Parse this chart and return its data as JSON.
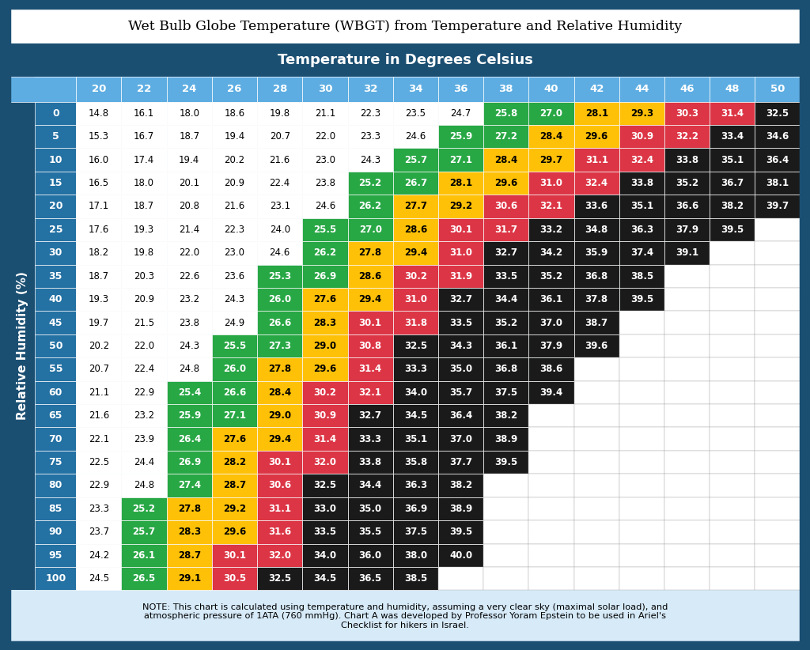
{
  "title": "Wet Bulb Globe Temperature (WBGT) from Temperature and Relative Humidity",
  "subtitle": "Temperature in Degrees Celsius",
  "ylabel": "Relative Humidity (%)",
  "temp_cols": [
    20,
    22,
    24,
    26,
    28,
    30,
    32,
    34,
    36,
    38,
    40,
    42,
    44,
    46,
    48,
    50
  ],
  "humidity_rows": [
    0,
    5,
    10,
    15,
    20,
    25,
    30,
    35,
    40,
    45,
    50,
    55,
    60,
    65,
    70,
    75,
    80,
    85,
    90,
    95,
    100
  ],
  "data": [
    [
      14.8,
      16.1,
      18.0,
      18.6,
      19.8,
      21.1,
      22.3,
      23.5,
      24.7,
      25.8,
      27.0,
      28.1,
      29.3,
      30.3,
      31.4,
      32.5
    ],
    [
      15.3,
      16.7,
      18.7,
      19.4,
      20.7,
      22.0,
      23.3,
      24.6,
      25.9,
      27.2,
      28.4,
      29.6,
      30.9,
      32.2,
      33.4,
      34.6
    ],
    [
      16.0,
      17.4,
      19.4,
      20.2,
      21.6,
      23.0,
      24.3,
      25.7,
      27.1,
      28.4,
      29.7,
      31.1,
      32.4,
      33.8,
      35.1,
      36.4
    ],
    [
      16.5,
      18.0,
      20.1,
      20.9,
      22.4,
      23.8,
      25.2,
      26.7,
      28.1,
      29.6,
      31.0,
      32.4,
      33.8,
      35.2,
      36.7,
      38.1
    ],
    [
      17.1,
      18.7,
      20.8,
      21.6,
      23.1,
      24.6,
      26.2,
      27.7,
      29.2,
      30.6,
      32.1,
      33.6,
      35.1,
      36.6,
      38.2,
      39.7
    ],
    [
      17.6,
      19.3,
      21.4,
      22.3,
      24.0,
      25.5,
      27.0,
      28.6,
      30.1,
      31.7,
      33.2,
      34.8,
      36.3,
      37.9,
      39.5,
      null
    ],
    [
      18.2,
      19.8,
      22.0,
      23.0,
      24.6,
      26.2,
      27.8,
      29.4,
      31.0,
      32.7,
      34.2,
      35.9,
      37.4,
      39.1,
      null,
      null
    ],
    [
      18.7,
      20.3,
      22.6,
      23.6,
      25.3,
      26.9,
      28.6,
      30.2,
      31.9,
      33.5,
      35.2,
      36.8,
      38.5,
      null,
      null,
      null
    ],
    [
      19.3,
      20.9,
      23.2,
      24.3,
      26.0,
      27.6,
      29.4,
      31.0,
      32.7,
      34.4,
      36.1,
      37.8,
      39.5,
      null,
      null,
      null
    ],
    [
      19.7,
      21.5,
      23.8,
      24.9,
      26.6,
      28.3,
      30.1,
      31.8,
      33.5,
      35.2,
      37.0,
      38.7,
      null,
      null,
      null,
      null
    ],
    [
      20.2,
      22.0,
      24.3,
      25.5,
      27.3,
      29.0,
      30.8,
      32.5,
      34.3,
      36.1,
      37.9,
      39.6,
      null,
      null,
      null,
      null
    ],
    [
      20.7,
      22.4,
      24.8,
      26.0,
      27.8,
      29.6,
      31.4,
      33.3,
      35.0,
      36.8,
      38.6,
      null,
      null,
      null,
      null,
      null
    ],
    [
      21.1,
      22.9,
      25.4,
      26.6,
      28.4,
      30.2,
      32.1,
      34.0,
      35.7,
      37.5,
      39.4,
      null,
      null,
      null,
      null,
      null
    ],
    [
      21.6,
      23.2,
      25.9,
      27.1,
      29.0,
      30.9,
      32.7,
      34.5,
      36.4,
      38.2,
      null,
      null,
      null,
      null,
      null,
      null
    ],
    [
      22.1,
      23.9,
      26.4,
      27.6,
      29.4,
      31.4,
      33.3,
      35.1,
      37.0,
      38.9,
      null,
      null,
      null,
      null,
      null,
      null
    ],
    [
      22.5,
      24.4,
      26.9,
      28.2,
      30.1,
      32.0,
      33.8,
      35.8,
      37.7,
      39.5,
      null,
      null,
      null,
      null,
      null,
      null
    ],
    [
      22.9,
      24.8,
      27.4,
      28.7,
      30.6,
      32.5,
      34.4,
      36.3,
      38.2,
      null,
      null,
      null,
      null,
      null,
      null,
      null
    ],
    [
      23.3,
      25.2,
      27.8,
      29.2,
      31.1,
      33.0,
      35.0,
      36.9,
      38.9,
      null,
      null,
      null,
      null,
      null,
      null,
      null
    ],
    [
      23.7,
      25.7,
      28.3,
      29.6,
      31.6,
      33.5,
      35.5,
      37.5,
      39.5,
      null,
      null,
      null,
      null,
      null,
      null,
      null
    ],
    [
      24.2,
      26.1,
      28.7,
      30.1,
      32.0,
      34.0,
      36.0,
      38.0,
      40.0,
      null,
      null,
      null,
      null,
      null,
      null,
      null
    ],
    [
      24.5,
      26.5,
      29.1,
      30.5,
      32.5,
      34.5,
      36.5,
      38.5,
      null,
      null,
      null,
      null,
      null,
      null,
      null,
      null
    ]
  ],
  "note": "NOTE: This chart is calculated using temperature and humidity, assuming a very clear sky (maximal solar load), and\natmospheric pressure of 1ATA (760 mmHg). Chart A was developed by Professor Yoram Epstein to be used in Ariel's\nChecklist for hikers in Israel.",
  "dark_blue": "#1b4f72",
  "mid_blue": "#2471a3",
  "light_blue": "#5dade2",
  "header_text": "#ffffff",
  "color_white": "#ffffff",
  "color_green": "#28a745",
  "color_yellow": "#ffc107",
  "color_red": "#dc3545",
  "color_dark": "#1a1a1a",
  "color_black_text": "#000000",
  "note_bg": "#d6eaf8",
  "thresholds": [
    25.0,
    27.5,
    30.0,
    32.5
  ]
}
